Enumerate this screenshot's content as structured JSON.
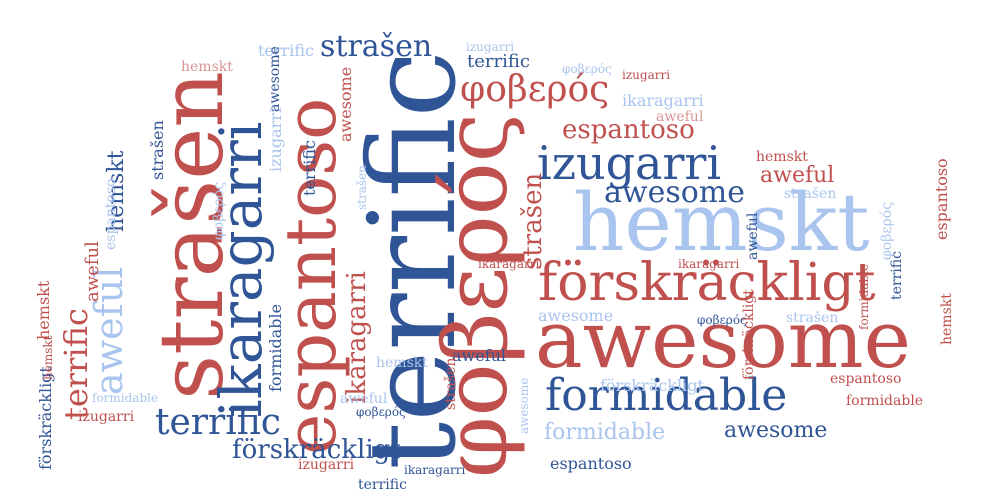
{
  "palette": {
    "red": "#c0504d",
    "blue": "#2f5597",
    "light_blue": "#a9c4ee",
    "pink": "#d99694"
  },
  "words": [
    "terrific",
    "strašen",
    "ikaragarri",
    "espantoso",
    "φοβερός",
    "awesome",
    "hemskt",
    "förskräckligt",
    "izugarri",
    "formidable",
    "awesome",
    "aweful",
    "terrific",
    "espantoso",
    "förskräckligt",
    "strašen",
    "φοβερός",
    "espantoso",
    "ikaragarri",
    "aweful",
    "formidable",
    "hemskt",
    "izugarri",
    "terrific",
    "awesome",
    "hemskt",
    "strašen",
    "formidable",
    "φοβερός",
    "espantoso",
    "terrific",
    "ikaragarri",
    "izugarri",
    "aweful",
    "förskräckligt",
    "hemskt",
    "strašen",
    "formidable",
    "espantoso",
    "izugarri",
    "formidable",
    "aweful",
    "φοβερός",
    "terrific",
    "hemskt",
    "awesome",
    "strašen",
    "ikaragarri",
    "izugarri",
    "aweful",
    "terrific",
    "hemskt",
    "strašen",
    "φοβερός",
    "awesome",
    "förskräckligt",
    "espantoso",
    "formidable",
    "ikaragarri",
    "aweful",
    "hemskt",
    "izugarri",
    "φοβερός",
    "terrific",
    "strašen",
    "awesome",
    "espantoso",
    "förskräckligt",
    "ikaragarri",
    "formidable",
    "aweful",
    "izugarri",
    "φοβερός",
    "terrific",
    "hemskt",
    "strašen",
    "awesome"
  ]
}
